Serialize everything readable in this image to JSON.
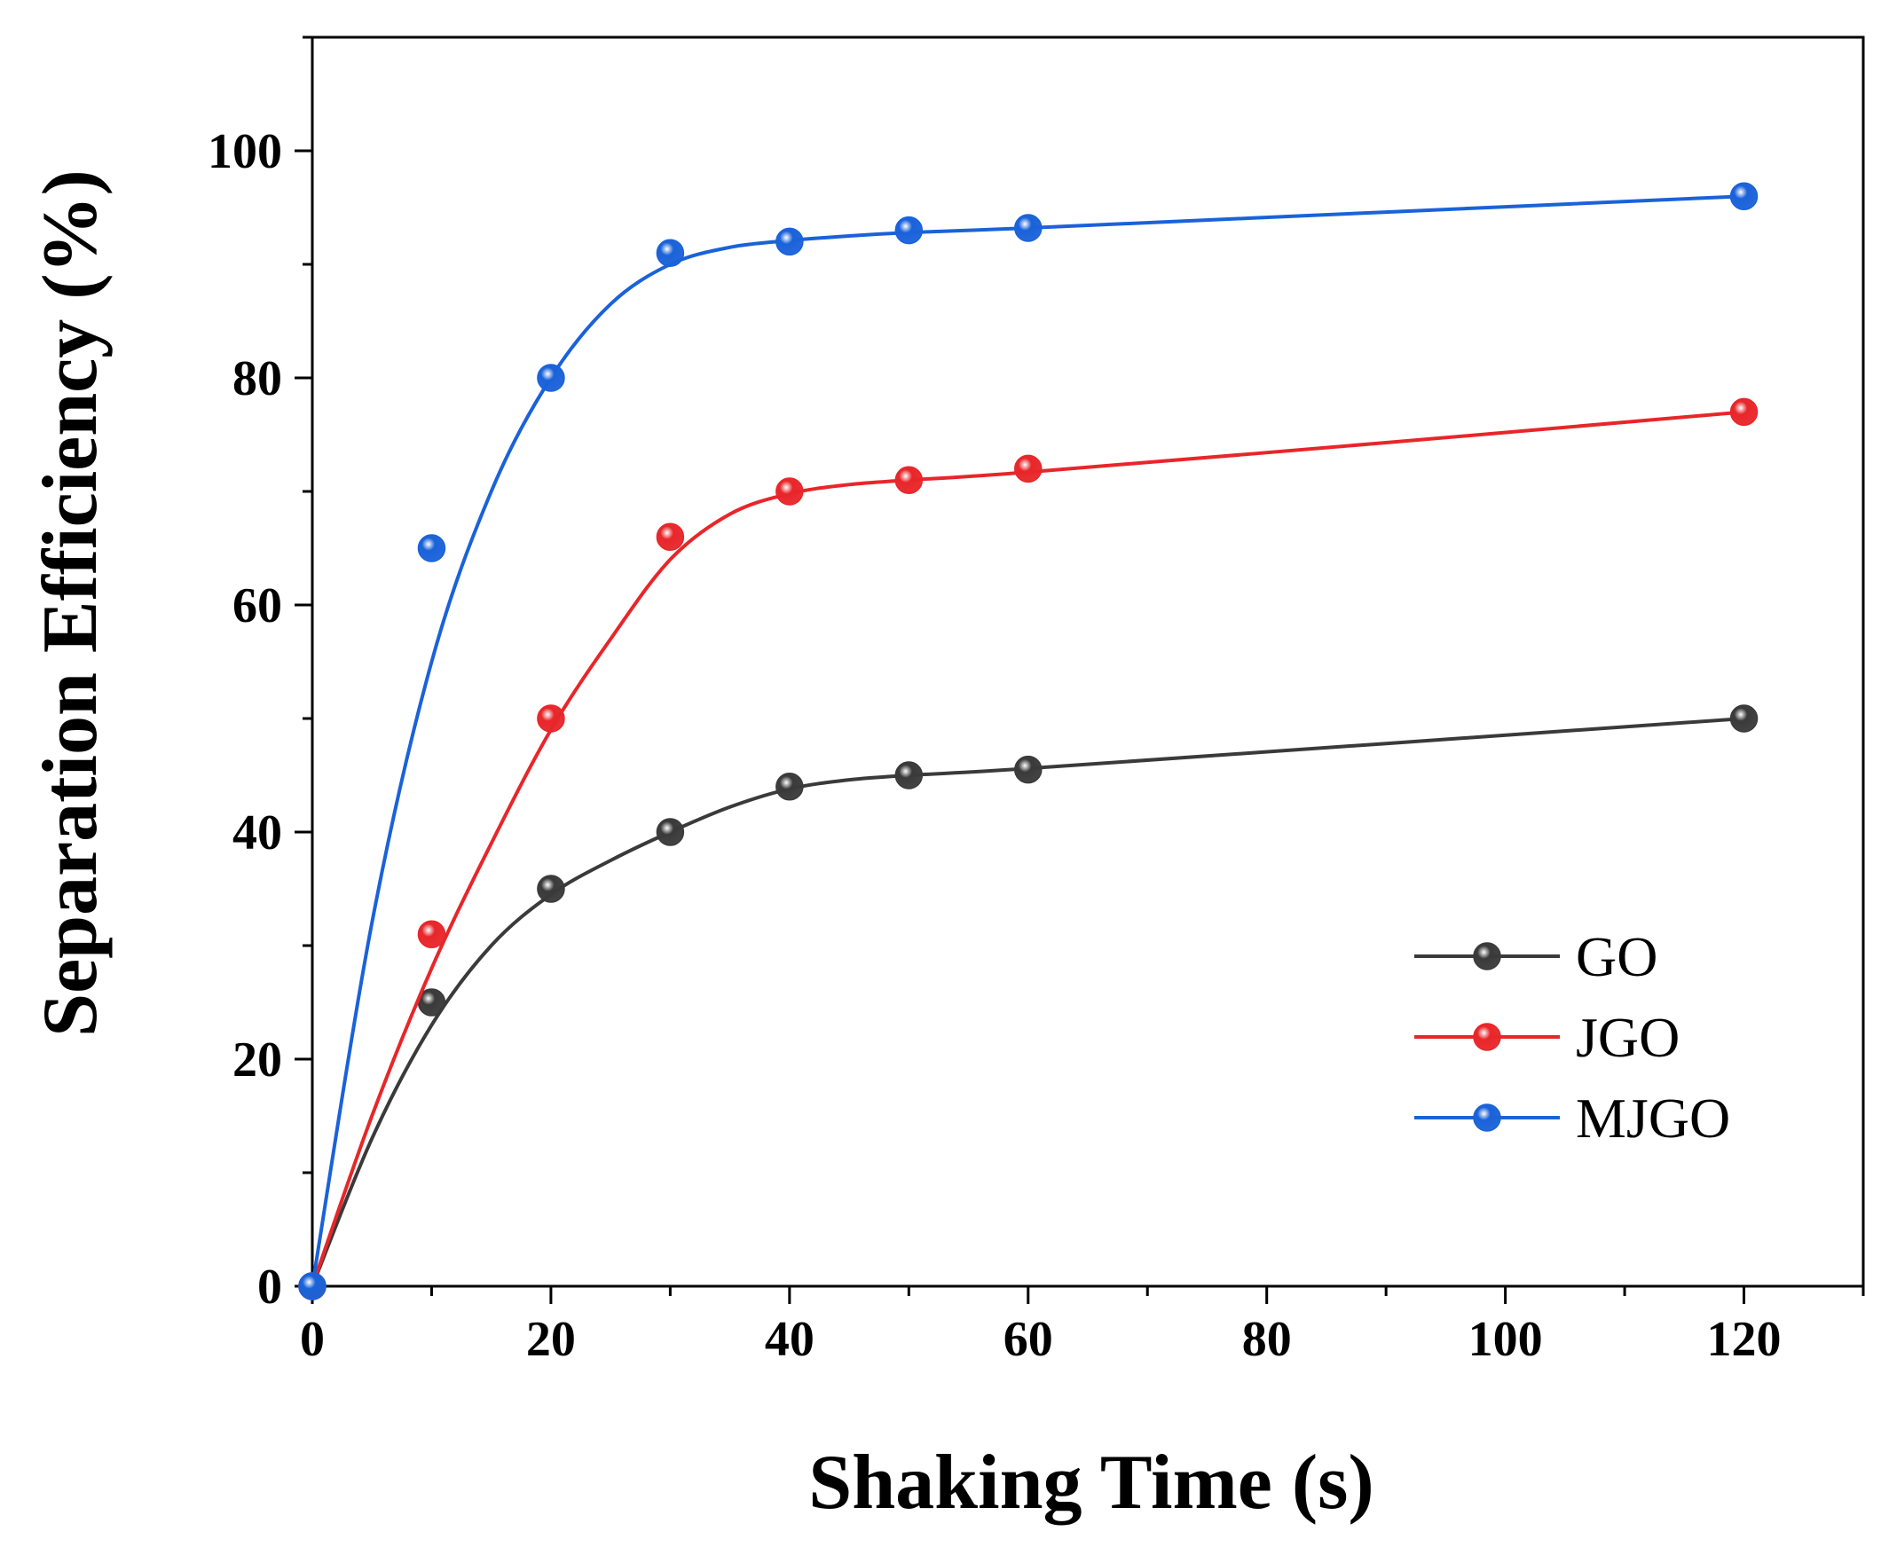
{
  "chart_data": {
    "type": "line",
    "title": "",
    "xlabel": "Shaking Time (s)",
    "ylabel": "Separation Efficiency (%)",
    "xlim": [
      0,
      130
    ],
    "ylim": [
      0,
      110
    ],
    "xticks": [
      0,
      20,
      40,
      60,
      80,
      100,
      120
    ],
    "yticks": [
      0,
      20,
      40,
      60,
      80,
      100
    ],
    "xtick_labels": [
      "0",
      "20",
      "40",
      "60",
      "80",
      "100",
      "120"
    ],
    "ytick_labels": [
      "0",
      "20",
      "40",
      "60",
      "80",
      "100"
    ],
    "legend_position": "bottom-right",
    "series": [
      {
        "name": "GO",
        "color": "#3a3a3a",
        "x": [
          0,
          10,
          20,
          30,
          40,
          50,
          60,
          120
        ],
        "values": [
          0,
          25,
          35,
          40,
          44,
          45,
          45.5,
          50
        ],
        "curve": [
          [
            0,
            0
          ],
          [
            5,
            13
          ],
          [
            10,
            23
          ],
          [
            15,
            30
          ],
          [
            20,
            34.5
          ],
          [
            25,
            37.5
          ],
          [
            30,
            40
          ],
          [
            35,
            42.2
          ],
          [
            40,
            43.8
          ],
          [
            45,
            44.6
          ],
          [
            50,
            45
          ],
          [
            60,
            45.6
          ],
          [
            90,
            47.8
          ],
          [
            120,
            50
          ]
        ]
      },
      {
        "name": "JGO",
        "color": "#e8262a",
        "x": [
          0,
          10,
          20,
          30,
          40,
          50,
          60,
          120
        ],
        "values": [
          0,
          31,
          50,
          66,
          70,
          71,
          72,
          77
        ],
        "curve": [
          [
            0,
            0
          ],
          [
            5,
            15
          ],
          [
            10,
            28
          ],
          [
            15,
            39
          ],
          [
            20,
            49
          ],
          [
            25,
            57
          ],
          [
            30,
            64
          ],
          [
            35,
            68
          ],
          [
            40,
            69.8
          ],
          [
            45,
            70.6
          ],
          [
            50,
            71
          ],
          [
            60,
            71.7
          ],
          [
            90,
            74.3
          ],
          [
            120,
            77
          ]
        ]
      },
      {
        "name": "MJGO",
        "color": "#1a62d9",
        "x": [
          0,
          10,
          20,
          30,
          40,
          50,
          60,
          120
        ],
        "values": [
          0,
          65,
          80,
          91,
          92,
          93,
          93.2,
          96
        ],
        "curve": [
          [
            0,
            0
          ],
          [
            5,
            32
          ],
          [
            10,
            55
          ],
          [
            15,
            70
          ],
          [
            20,
            80
          ],
          [
            25,
            86.5
          ],
          [
            30,
            90
          ],
          [
            35,
            91.5
          ],
          [
            40,
            92.1
          ],
          [
            45,
            92.5
          ],
          [
            50,
            92.8
          ],
          [
            60,
            93.2
          ],
          [
            90,
            94.6
          ],
          [
            120,
            96
          ]
        ]
      }
    ]
  }
}
